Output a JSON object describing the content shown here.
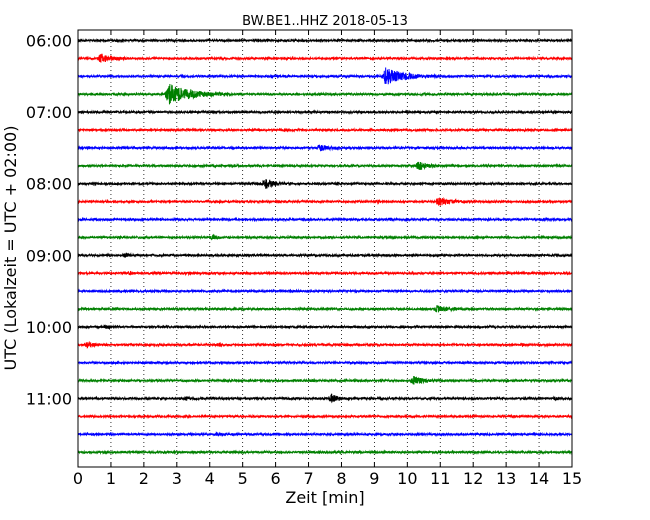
{
  "chart_data": {
    "type": "line",
    "title": "BW.BE1..HHZ 2018-05-13",
    "xlabel": "Zeit  [min]",
    "ylabel": "UTC (Lokalzeit = UTC + 02:00)",
    "xlim": [
      0,
      15
    ],
    "x_ticks": [
      "0",
      "1",
      "2",
      "3",
      "4",
      "5",
      "6",
      "7",
      "8",
      "9",
      "10",
      "11",
      "12",
      "13",
      "14",
      "15"
    ],
    "y_ticks": [
      "06:00",
      "07:00",
      "08:00",
      "09:00",
      "10:00",
      "11:00"
    ],
    "grid": "vertical dotted at each minute",
    "trace_colors": [
      "#000000",
      "#ff0000",
      "#0000ff",
      "#008000"
    ],
    "series": [
      {
        "start": "06:00",
        "color": "#000000",
        "events": [
          {
            "t": 10.6,
            "amp": 0.6,
            "dur": 0.25
          }
        ]
      },
      {
        "start": "06:15",
        "color": "#ff0000",
        "events": [
          {
            "t": 0.7,
            "amp": 4.5,
            "dur": 0.9
          }
        ]
      },
      {
        "start": "06:30",
        "color": "#0000ff",
        "events": [
          {
            "t": 9.35,
            "amp": 8.5,
            "dur": 1.6
          }
        ]
      },
      {
        "start": "06:45",
        "color": "#008000",
        "events": [
          {
            "t": 2.75,
            "amp": 10,
            "dur": 1.9
          }
        ]
      },
      {
        "start": "07:00",
        "color": "#000000",
        "events": []
      },
      {
        "start": "07:15",
        "color": "#ff0000",
        "events": [
          {
            "t": 2.0,
            "amp": 0.5,
            "dur": 0.2
          }
        ]
      },
      {
        "start": "07:30",
        "color": "#0000ff",
        "events": [
          {
            "t": 7.35,
            "amp": 3.2,
            "dur": 0.7
          }
        ]
      },
      {
        "start": "07:45",
        "color": "#008000",
        "events": [
          {
            "t": 10.35,
            "amp": 4.2,
            "dur": 0.8
          }
        ]
      },
      {
        "start": "08:00",
        "color": "#000000",
        "events": [
          {
            "t": 5.7,
            "amp": 4.5,
            "dur": 0.8
          },
          {
            "t": 7.9,
            "amp": 0.5,
            "dur": 0.15
          }
        ]
      },
      {
        "start": "08:15",
        "color": "#ff0000",
        "events": [
          {
            "t": 9.1,
            "amp": 1.2,
            "dur": 0.3
          },
          {
            "t": 10.95,
            "amp": 3.6,
            "dur": 1.1
          },
          {
            "t": 6.1,
            "amp": 0.4,
            "dur": 0.15
          }
        ]
      },
      {
        "start": "08:30",
        "color": "#0000ff",
        "events": [
          {
            "t": 13.1,
            "amp": 0.6,
            "dur": 0.2
          },
          {
            "t": 9.5,
            "amp": 0.4,
            "dur": 0.15
          }
        ]
      },
      {
        "start": "08:45",
        "color": "#008000",
        "events": [
          {
            "t": 4.1,
            "amp": 1.6,
            "dur": 0.5
          }
        ]
      },
      {
        "start": "09:00",
        "color": "#000000",
        "events": [
          {
            "t": 1.45,
            "amp": 2.0,
            "dur": 0.3
          },
          {
            "t": 9.0,
            "amp": 0.5,
            "dur": 0.15
          }
        ]
      },
      {
        "start": "09:15",
        "color": "#ff0000",
        "events": [
          {
            "t": 1.6,
            "amp": 1.4,
            "dur": 0.25
          },
          {
            "t": 3.3,
            "amp": 0.8,
            "dur": 0.2
          },
          {
            "t": 13.4,
            "amp": 1.0,
            "dur": 0.2
          },
          {
            "t": 14.2,
            "amp": 0.9,
            "dur": 0.2
          }
        ]
      },
      {
        "start": "09:30",
        "color": "#0000ff",
        "events": [
          {
            "t": 6.5,
            "amp": 0.5,
            "dur": 0.15
          }
        ]
      },
      {
        "start": "09:45",
        "color": "#008000",
        "events": [
          {
            "t": 10.9,
            "amp": 3.2,
            "dur": 1.0
          }
        ]
      },
      {
        "start": "10:00",
        "color": "#000000",
        "events": [
          {
            "t": 0.9,
            "amp": 1.3,
            "dur": 0.5
          },
          {
            "t": 3.0,
            "amp": 0.5,
            "dur": 0.15
          },
          {
            "t": 9.9,
            "amp": 0.5,
            "dur": 0.15
          }
        ]
      },
      {
        "start": "10:15",
        "color": "#ff0000",
        "events": [
          {
            "t": 0.3,
            "amp": 2.5,
            "dur": 0.5
          },
          {
            "t": 4.3,
            "amp": 1.4,
            "dur": 0.2
          },
          {
            "t": 5.6,
            "amp": 0.8,
            "dur": 0.2
          },
          {
            "t": 13.5,
            "amp": 0.9,
            "dur": 0.25
          },
          {
            "t": 14.2,
            "amp": 0.7,
            "dur": 0.2
          }
        ]
      },
      {
        "start": "10:30",
        "color": "#0000ff",
        "events": []
      },
      {
        "start": "10:45",
        "color": "#008000",
        "events": [
          {
            "t": 10.2,
            "amp": 4.0,
            "dur": 0.8
          },
          {
            "t": 7.1,
            "amp": 0.8,
            "dur": 0.2
          },
          {
            "t": 4.7,
            "amp": 0.4,
            "dur": 0.15
          }
        ]
      },
      {
        "start": "11:00",
        "color": "#000000",
        "events": [
          {
            "t": 3.3,
            "amp": 1.5,
            "dur": 0.4
          },
          {
            "t": 7.7,
            "amp": 4.0,
            "dur": 0.6
          },
          {
            "t": 14.5,
            "amp": 1.2,
            "dur": 0.3
          },
          {
            "t": 10.7,
            "amp": 0.5,
            "dur": 0.2
          }
        ]
      },
      {
        "start": "11:15",
        "color": "#ff0000",
        "events": []
      },
      {
        "start": "11:30",
        "color": "#0000ff",
        "events": [
          {
            "t": 4.2,
            "amp": 1.2,
            "dur": 0.8
          },
          {
            "t": 9.5,
            "amp": 0.4,
            "dur": 0.2
          }
        ]
      },
      {
        "start": "11:45",
        "color": "#008000",
        "events": [
          {
            "t": 0.9,
            "amp": 0.8,
            "dur": 0.3
          }
        ]
      }
    ]
  }
}
